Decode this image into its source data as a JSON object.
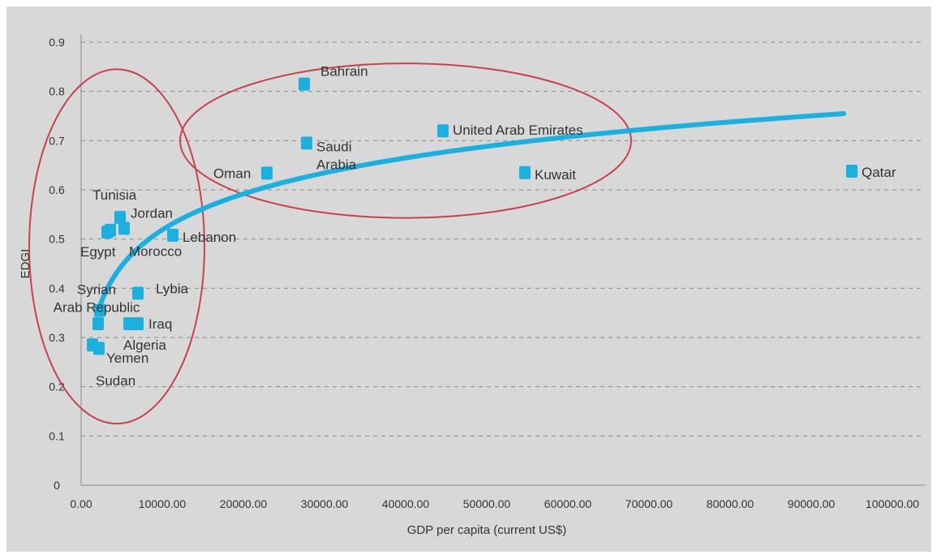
{
  "chart_data": {
    "type": "scatter",
    "title": "",
    "xlabel": "GDP per capita (current US$)",
    "ylabel": "EDGI",
    "xlim": [
      0,
      100000
    ],
    "ylim": [
      0,
      0.9
    ],
    "x_ticks": [
      "0.00",
      "10000.00",
      "20000.00",
      "30000.00",
      "40000.00",
      "50000.00",
      "60000.00",
      "70000.00",
      "80000.00",
      "90000.00",
      "100000.00"
    ],
    "x_tick_values": [
      0,
      10000,
      20000,
      30000,
      40000,
      50000,
      60000,
      70000,
      80000,
      90000,
      100000
    ],
    "y_ticks": [
      "0",
      "0.1",
      "0.2",
      "0.3",
      "0.4",
      "0.5",
      "0.6",
      "0.7",
      "0.8",
      "0.9"
    ],
    "y_tick_values": [
      0,
      0.1,
      0.2,
      0.3,
      0.4,
      0.5,
      0.6,
      0.7,
      0.8,
      0.9
    ],
    "grid": true,
    "point_color": "#1ab0e0",
    "trend_color": "#1ab0e0",
    "ellipse_color": "#c8414b",
    "points": [
      {
        "label": "Bahrain",
        "x": 27500,
        "y": 0.815
      },
      {
        "label": "United Arab Emirates",
        "x": 44600,
        "y": 0.72
      },
      {
        "label": "Saudi Arabia",
        "x": 27800,
        "y": 0.695
      },
      {
        "label": "Oman",
        "x": 22900,
        "y": 0.634
      },
      {
        "label": "Kuwait",
        "x": 54700,
        "y": 0.635
      },
      {
        "label": "Qatar",
        "x": 95000,
        "y": 0.638
      },
      {
        "label": "Tunisia",
        "x": 4800,
        "y": 0.544
      },
      {
        "label": "Jordan",
        "x": 5300,
        "y": 0.522
      },
      {
        "label": "Egypt",
        "x": 3200,
        "y": 0.514
      },
      {
        "label": "Morocco",
        "x": 3600,
        "y": 0.518
      },
      {
        "label": "Lebanon",
        "x": 11300,
        "y": 0.508
      },
      {
        "label": "Syrian Arab Republic",
        "x": 2300,
        "y": 0.355
      },
      {
        "label": "Lybia",
        "x": 7000,
        "y": 0.39
      },
      {
        "label": "Iraq",
        "x": 7000,
        "y": 0.328
      },
      {
        "label": "Algeria",
        "x": 5900,
        "y": 0.328
      },
      {
        "label": "Yemen",
        "x": 2100,
        "y": 0.328
      },
      {
        "label": "Sudan",
        "x": 1400,
        "y": 0.285
      },
      {
        "label": "",
        "x": 2200,
        "y": 0.278
      }
    ],
    "trendline": {
      "type": "logarithmic",
      "x_start": 2000,
      "x_end": 94000
    },
    "annotations": [
      {
        "type": "ellipse",
        "cx": 4400,
        "cy": 0.485,
        "rx": 10800,
        "ry": 0.36
      },
      {
        "type": "ellipse",
        "cx": 40000,
        "cy": 0.7,
        "rx": 27800,
        "ry": 0.157
      }
    ]
  }
}
